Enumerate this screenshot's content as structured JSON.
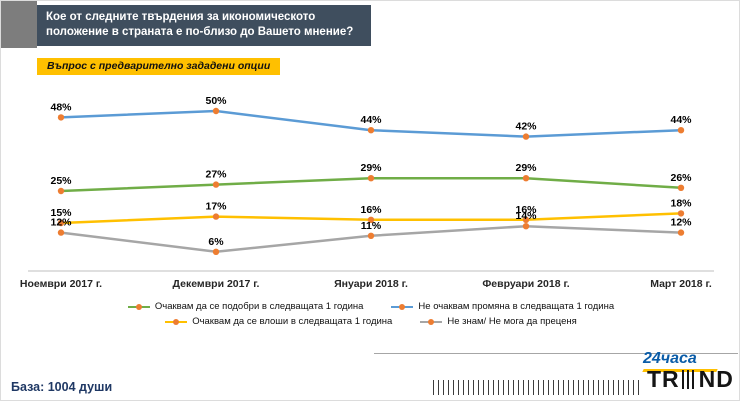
{
  "header": {
    "title": "Кое от следните твърдения за икономическото положение в страната е по-близо до Вашето мнение?",
    "subtitle": "Въпрос с предварително зададени опции"
  },
  "chart_data": {
    "type": "line",
    "title": "",
    "categories": [
      "Ноември 2017 г.",
      "Декември 2017 г.",
      "Януари 2018 г.",
      "Февруари 2018 г.",
      "Март 2018 г."
    ],
    "series": [
      {
        "name": "Очаквам да се подобри в следващата 1 година",
        "color": "#70AD47",
        "values": [
          25,
          27,
          29,
          29,
          26
        ]
      },
      {
        "name": "Не очаквам промяна в следващата 1 година",
        "color": "#5B9BD5",
        "values": [
          48,
          50,
          44,
          42,
          44
        ]
      },
      {
        "name": "Очаквам да се влоши в следващата 1 година",
        "color": "#FFC000",
        "values": [
          15,
          17,
          16,
          16,
          18
        ]
      },
      {
        "name": "Не знам/ Не мога да преценя",
        "color": "#A6A6A6",
        "values": [
          12,
          6,
          11,
          14,
          12
        ]
      }
    ],
    "marker_color": "#ED7D31",
    "data_label_format": "{v}%",
    "ylim": [
      0,
      55
    ],
    "grid": false,
    "legend_position": "bottom",
    "axis_line_color": "#BFBFBF"
  },
  "footer": {
    "base_label": "База: 1004 души"
  },
  "branding": {
    "newspaper": "24часа",
    "agency_prefix": "TR",
    "agency_suffix": "ND"
  }
}
